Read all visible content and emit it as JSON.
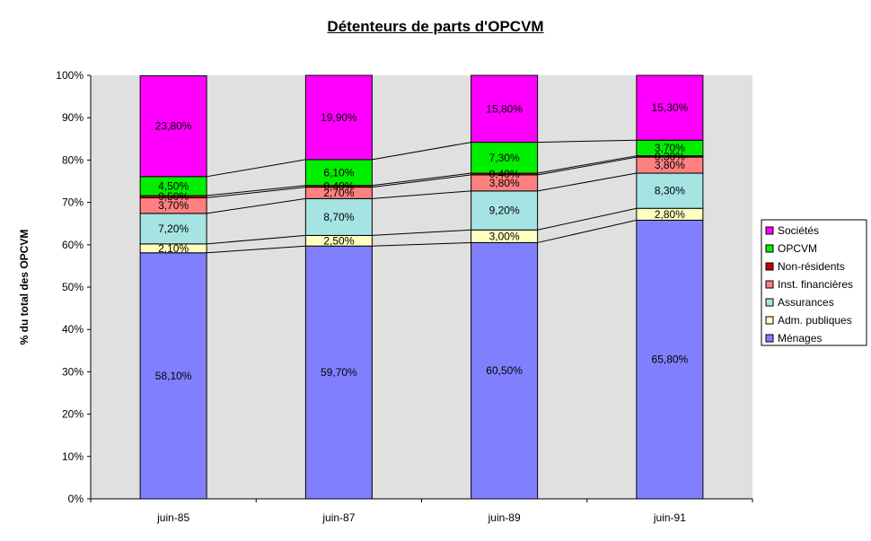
{
  "chart_data": {
    "type": "bar",
    "stacked": true,
    "title": "Détenteurs de parts d'OPCVM",
    "xlabel": "",
    "ylabel": "% du total des OPCVM",
    "ylim": [
      0,
      100
    ],
    "y_ticks": [
      "0%",
      "10%",
      "20%",
      "30%",
      "40%",
      "50%",
      "60%",
      "70%",
      "80%",
      "90%",
      "100%"
    ],
    "categories": [
      "juin-85",
      "juin-87",
      "juin-89",
      "juin-91"
    ],
    "grid": false,
    "legend_position": "right",
    "series": [
      {
        "name": "Ménages",
        "color": "#8080ff",
        "values": [
          58.1,
          59.7,
          60.5,
          65.8
        ],
        "labels": [
          "58,10%",
          "59,70%",
          "60,50%",
          "65,80%"
        ]
      },
      {
        "name": "Adm. publiques",
        "color": "#ffffc0",
        "values": [
          2.1,
          2.5,
          3.0,
          2.8
        ],
        "labels": [
          "2,10%",
          "2,50%",
          "3,00%",
          "2,80%"
        ]
      },
      {
        "name": "Assurances",
        "color": "#a6e4e4",
        "values": [
          7.2,
          8.7,
          9.2,
          8.3
        ],
        "labels": [
          "7,20%",
          "8,70%",
          "9,20%",
          "8,30%"
        ]
      },
      {
        "name": "Inst. financières",
        "color": "#ff8080",
        "values": [
          3.7,
          2.7,
          3.8,
          3.8
        ],
        "labels": [
          "3,70%",
          "2,70%",
          "3,80%",
          "3,80%"
        ]
      },
      {
        "name": "Non-résidents",
        "color": "#cc0000",
        "values": [
          0.5,
          0.4,
          0.4,
          0.3
        ],
        "labels": [
          "0,50%",
          "0,40%",
          "0,40%",
          "0,30%"
        ]
      },
      {
        "name": "OPCVM",
        "color": "#00ee00",
        "values": [
          4.5,
          6.1,
          7.3,
          3.7
        ],
        "labels": [
          "4,50%",
          "6,10%",
          "7,30%",
          "3,70%"
        ]
      },
      {
        "name": "Sociétés",
        "color": "#ff00ff",
        "values": [
          23.8,
          19.9,
          15.8,
          15.3
        ],
        "labels": [
          "23,80%",
          "19,90%",
          "15,80%",
          "15,30%"
        ]
      }
    ]
  }
}
